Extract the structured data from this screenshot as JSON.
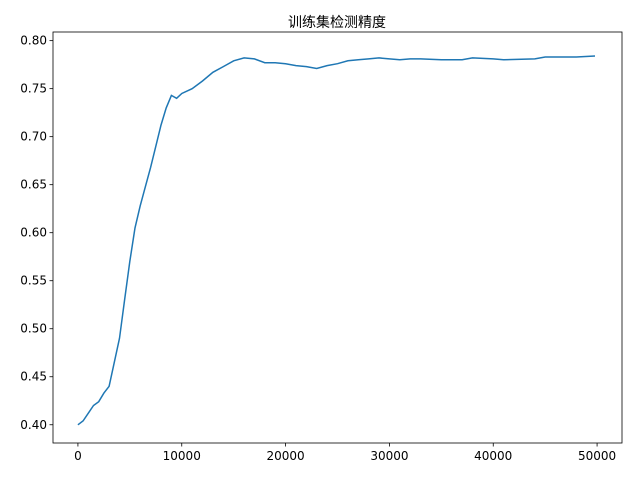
{
  "chart_data": {
    "type": "line",
    "title": "训练集检测精度",
    "xlabel": "",
    "ylabel": "",
    "xlim": [
      -2400,
      52400
    ],
    "ylim": [
      0.381,
      0.809
    ],
    "xticks": [
      0,
      10000,
      20000,
      30000,
      40000,
      50000
    ],
    "xtick_labels": [
      "0",
      "10000",
      "20000",
      "30000",
      "40000",
      "50000"
    ],
    "yticks": [
      0.4,
      0.45,
      0.5,
      0.55,
      0.6,
      0.65,
      0.7,
      0.75,
      0.8
    ],
    "ytick_labels": [
      "0.40",
      "0.45",
      "0.50",
      "0.55",
      "0.60",
      "0.65",
      "0.70",
      "0.75",
      "0.80"
    ],
    "grid": false,
    "series": [
      {
        "color": "#1f77b4",
        "x": [
          0,
          500,
          1000,
          1500,
          2000,
          2500,
          3000,
          3500,
          4000,
          4500,
          5000,
          5500,
          6000,
          6500,
          7000,
          7500,
          8000,
          8500,
          9000,
          9500,
          10000,
          11000,
          12000,
          13000,
          14000,
          15000,
          16000,
          17000,
          18000,
          19000,
          20000,
          21000,
          22000,
          23000,
          24000,
          25000,
          26000,
          27000,
          28000,
          29000,
          30000,
          31000,
          32000,
          33000,
          35000,
          37000,
          38000,
          40000,
          41000,
          44000,
          45000,
          48000,
          49800
        ],
        "y": [
          0.4,
          0.404,
          0.412,
          0.42,
          0.424,
          0.433,
          0.44,
          0.465,
          0.49,
          0.53,
          0.57,
          0.605,
          0.628,
          0.648,
          0.668,
          0.69,
          0.712,
          0.73,
          0.743,
          0.74,
          0.745,
          0.75,
          0.758,
          0.767,
          0.773,
          0.779,
          0.782,
          0.781,
          0.777,
          0.777,
          0.776,
          0.774,
          0.773,
          0.771,
          0.774,
          0.776,
          0.779,
          0.78,
          0.781,
          0.782,
          0.781,
          0.78,
          0.781,
          0.781,
          0.78,
          0.78,
          0.782,
          0.781,
          0.78,
          0.781,
          0.783,
          0.783,
          0.784
        ]
      }
    ]
  }
}
